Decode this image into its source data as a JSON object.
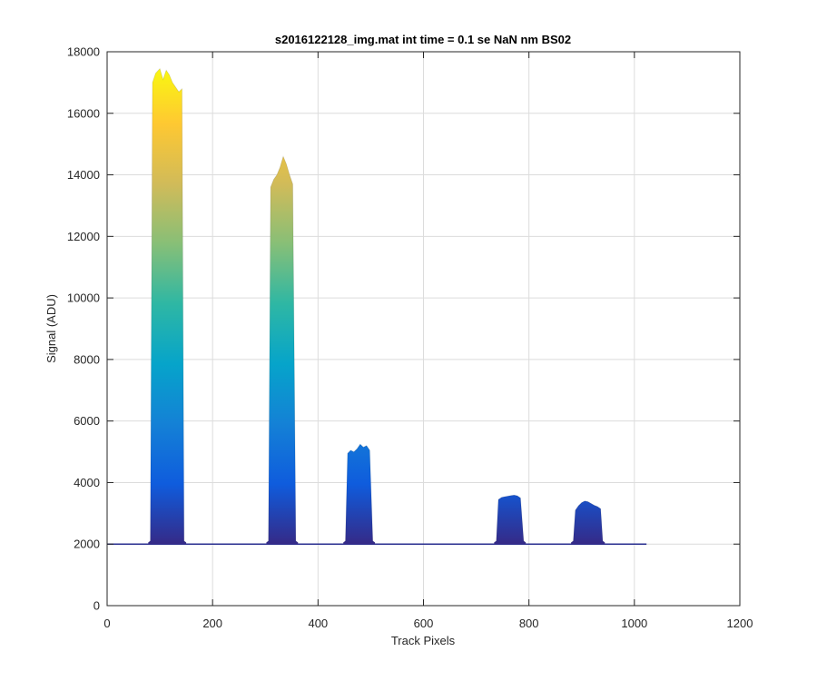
{
  "chart_data": {
    "type": "area",
    "title": "s2016122128_img.mat int time = 0.1 se  NaN nm BS02",
    "xlabel": "Track Pixels",
    "ylabel": "Signal (ADU)",
    "xlim": [
      0,
      1200
    ],
    "ylim": [
      0,
      18000
    ],
    "x_ticks": [
      0,
      200,
      400,
      600,
      800,
      1000,
      1200
    ],
    "y_ticks": [
      0,
      2000,
      4000,
      6000,
      8000,
      10000,
      12000,
      14000,
      16000,
      18000
    ],
    "grid": true,
    "colormap": [
      "#352a87",
      "#0f5cdd",
      "#1481d6",
      "#06a4ca",
      "#2eb7a4",
      "#87bf77",
      "#d1bb59",
      "#fec832",
      "#f9fb0e"
    ],
    "baseline": {
      "x": [
        0,
        1023
      ],
      "y": 2000
    },
    "series": [
      {
        "x": [
          78,
          82,
          86,
          92,
          100,
          106,
          112,
          118,
          124,
          130,
          136,
          142,
          146,
          150
        ],
        "values": [
          2050,
          2100,
          17000,
          17300,
          17450,
          17100,
          17400,
          17250,
          17000,
          16850,
          16700,
          16800,
          2100,
          2050
        ]
      },
      {
        "x": [
          302,
          306,
          310,
          316,
          322,
          328,
          334,
          340,
          346,
          352,
          358,
          362
        ],
        "values": [
          2050,
          2100,
          13600,
          13850,
          14000,
          14250,
          14600,
          14350,
          14000,
          13700,
          2100,
          2050
        ]
      },
      {
        "x": [
          448,
          452,
          456,
          462,
          468,
          474,
          480,
          486,
          492,
          498,
          504,
          508
        ],
        "values": [
          2050,
          2100,
          4950,
          5050,
          5000,
          5100,
          5250,
          5150,
          5200,
          5050,
          2100,
          2050
        ]
      },
      {
        "x": [
          734,
          738,
          742,
          748,
          754,
          760,
          766,
          772,
          778,
          784,
          790,
          794
        ],
        "values": [
          2050,
          2100,
          3450,
          3520,
          3540,
          3560,
          3580,
          3590,
          3570,
          3500,
          2100,
          2050
        ]
      },
      {
        "x": [
          880,
          884,
          888,
          894,
          900,
          906,
          912,
          918,
          924,
          930,
          936,
          940,
          944
        ],
        "values": [
          2050,
          2100,
          3100,
          3250,
          3350,
          3400,
          3380,
          3320,
          3260,
          3220,
          3150,
          2100,
          2050
        ]
      }
    ]
  }
}
